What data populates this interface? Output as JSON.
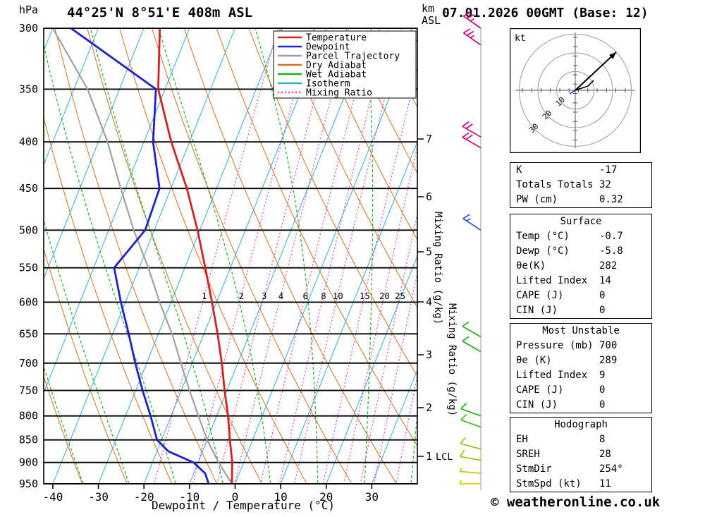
{
  "titles": {
    "location": "44°25'N 8°51'E 408m ASL",
    "datetime": "07.01.2026 00GMT (Base: 12)",
    "copyright": "© weatheronline.co.uk"
  },
  "axes": {
    "pressure_unit": "hPa",
    "height_unit_km": "km",
    "height_unit_asl": "ASL",
    "x_label": "Dewpoint / Temperature (°C)",
    "mixing_label": "Mixing Ratio (g/kg)",
    "lcl_label": "LCL"
  },
  "legend": [
    {
      "label": "Temperature",
      "color": "#d42020",
      "dash": ""
    },
    {
      "label": "Dewpoint",
      "color": "#2020cc",
      "dash": ""
    },
    {
      "label": "Parcel Trajectory",
      "color": "#a0a0a0",
      "dash": ""
    },
    {
      "label": "Dry Adiabat",
      "color": "#d07020",
      "dash": ""
    },
    {
      "label": "Wet Adiabat",
      "color": "#1fae1f",
      "dash": ""
    },
    {
      "label": "Isotherm",
      "color": "#33aadd",
      "dash": ""
    },
    {
      "label": "Mixing Ratio",
      "color": "#ee4499",
      "dash": "2,3"
    }
  ],
  "chart_data": {
    "type": "line",
    "title": "Skew-T log-P sounding",
    "x_axis": {
      "label": "Dewpoint / Temperature (°C)",
      "ticks": [
        -40,
        -30,
        -20,
        -10,
        0,
        10,
        20,
        30
      ],
      "range_C": [
        -42,
        40
      ]
    },
    "y_axis": {
      "label": "hPa",
      "scale": "log",
      "ticks": [
        300,
        350,
        400,
        450,
        500,
        550,
        600,
        650,
        700,
        750,
        800,
        850,
        900,
        950
      ],
      "range_hPa": [
        300,
        950
      ]
    },
    "km_axis": {
      "label": "km ASL",
      "ticks": [
        1,
        2,
        3,
        4,
        5,
        6,
        7
      ]
    },
    "mixing_ratio_lines_g_kg": [
      1,
      2,
      3,
      4,
      6,
      8,
      10,
      15,
      20,
      25,
      30,
      40
    ],
    "mixing_ratio_labeled": [
      1,
      2,
      3,
      4,
      6,
      8,
      10,
      15,
      20,
      25
    ],
    "series": [
      {
        "name": "Temperature",
        "color": "#d42020",
        "width": 2.8,
        "pressure_hPa": [
          950,
          900,
          850,
          800,
          750,
          700,
          650,
          600,
          550,
          500,
          450,
          400,
          350,
          300
        ],
        "temp_C": [
          -0.7,
          -2.5,
          -5,
          -7.5,
          -10.5,
          -13.5,
          -17,
          -21,
          -25.5,
          -30.5,
          -36.5,
          -44,
          -51.5,
          -56.5
        ]
      },
      {
        "name": "Dewpoint",
        "color": "#2020cc",
        "width": 2.8,
        "pressure_hPa": [
          950,
          925,
          900,
          875,
          850,
          800,
          750,
          700,
          650,
          600,
          550,
          500,
          450,
          400,
          350,
          300
        ],
        "temp_C": [
          -5.8,
          -7.5,
          -11,
          -17.5,
          -21,
          -24.5,
          -28.5,
          -32.5,
          -36.5,
          -41,
          -45.5,
          -42,
          -42.5,
          -48,
          -52,
          -76
        ]
      },
      {
        "name": "Parcel Trajectory",
        "color": "#a0a0a0",
        "width": 2.2,
        "pressure_hPa": [
          950,
          900,
          850,
          800,
          750,
          700,
          650,
          600,
          550,
          500,
          450,
          400,
          350,
          300
        ],
        "temp_C": [
          -0.7,
          -5.5,
          -10,
          -14,
          -18.2,
          -22.5,
          -27,
          -32.5,
          -38,
          -44.5,
          -51,
          -58,
          -67,
          -80
        ]
      }
    ],
    "wind_barbs": [
      {
        "p_hPa": 300,
        "spd_kt": 25,
        "dir_deg": 305,
        "color": "#cc0077"
      },
      {
        "p_hPa": 313,
        "spd_kt": 25,
        "dir_deg": 305,
        "color": "#cc0077"
      },
      {
        "p_hPa": 395,
        "spd_kt": 20,
        "dir_deg": 300,
        "color": "#cc0077"
      },
      {
        "p_hPa": 406,
        "spd_kt": 20,
        "dir_deg": 300,
        "color": "#cc0077"
      },
      {
        "p_hPa": 500,
        "spd_kt": 15,
        "dir_deg": 303,
        "color": "#2b4fd0"
      },
      {
        "p_hPa": 655,
        "spd_kt": 10,
        "dir_deg": 300,
        "color": "#1fae1f"
      },
      {
        "p_hPa": 680,
        "spd_kt": 10,
        "dir_deg": 300,
        "color": "#1fae1f"
      },
      {
        "p_hPa": 800,
        "spd_kt": 10,
        "dir_deg": 290,
        "color": "#1fae1f"
      },
      {
        "p_hPa": 823,
        "spd_kt": 10,
        "dir_deg": 290,
        "color": "#3fbf1f"
      },
      {
        "p_hPa": 870,
        "spd_kt": 10,
        "dir_deg": 285,
        "color": "#8cc41e"
      },
      {
        "p_hPa": 895,
        "spd_kt": 10,
        "dir_deg": 280,
        "color": "#9ec400"
      },
      {
        "p_hPa": 925,
        "spd_kt": 5,
        "dir_deg": 275,
        "color": "#c4c400"
      },
      {
        "p_hPa": 950,
        "spd_kt": 5,
        "dir_deg": 270,
        "color": "#d6d600"
      }
    ]
  },
  "hodograph": {
    "unit": "kt",
    "ring_labels": [
      "10",
      "20",
      "30"
    ],
    "rings_kt": [
      10,
      20,
      30
    ]
  },
  "tables": [
    {
      "title": "",
      "rows": [
        [
          "K",
          "-17"
        ],
        [
          "Totals Totals",
          "32"
        ],
        [
          "PW (cm)",
          "0.32"
        ]
      ]
    },
    {
      "title": "Surface",
      "rows": [
        [
          "Temp (°C)",
          "-0.7"
        ],
        [
          "Dewp (°C)",
          "-5.8"
        ],
        [
          "θe(K)",
          "282"
        ],
        [
          "Lifted Index",
          "14"
        ],
        [
          "CAPE (J)",
          "0"
        ],
        [
          "CIN (J)",
          "0"
        ]
      ]
    },
    {
      "title": "Most Unstable",
      "rows": [
        [
          "Pressure (mb)",
          "700"
        ],
        [
          "θe (K)",
          "289"
        ],
        [
          "Lifted Index",
          "9"
        ],
        [
          "CAPE (J)",
          "0"
        ],
        [
          "CIN (J)",
          "0"
        ]
      ]
    },
    {
      "title": "Hodograph",
      "rows": [
        [
          "EH",
          "8"
        ],
        [
          "SREH",
          "28"
        ],
        [
          "StmDir",
          "254°"
        ],
        [
          "StmSpd (kt)",
          "11"
        ]
      ]
    }
  ]
}
